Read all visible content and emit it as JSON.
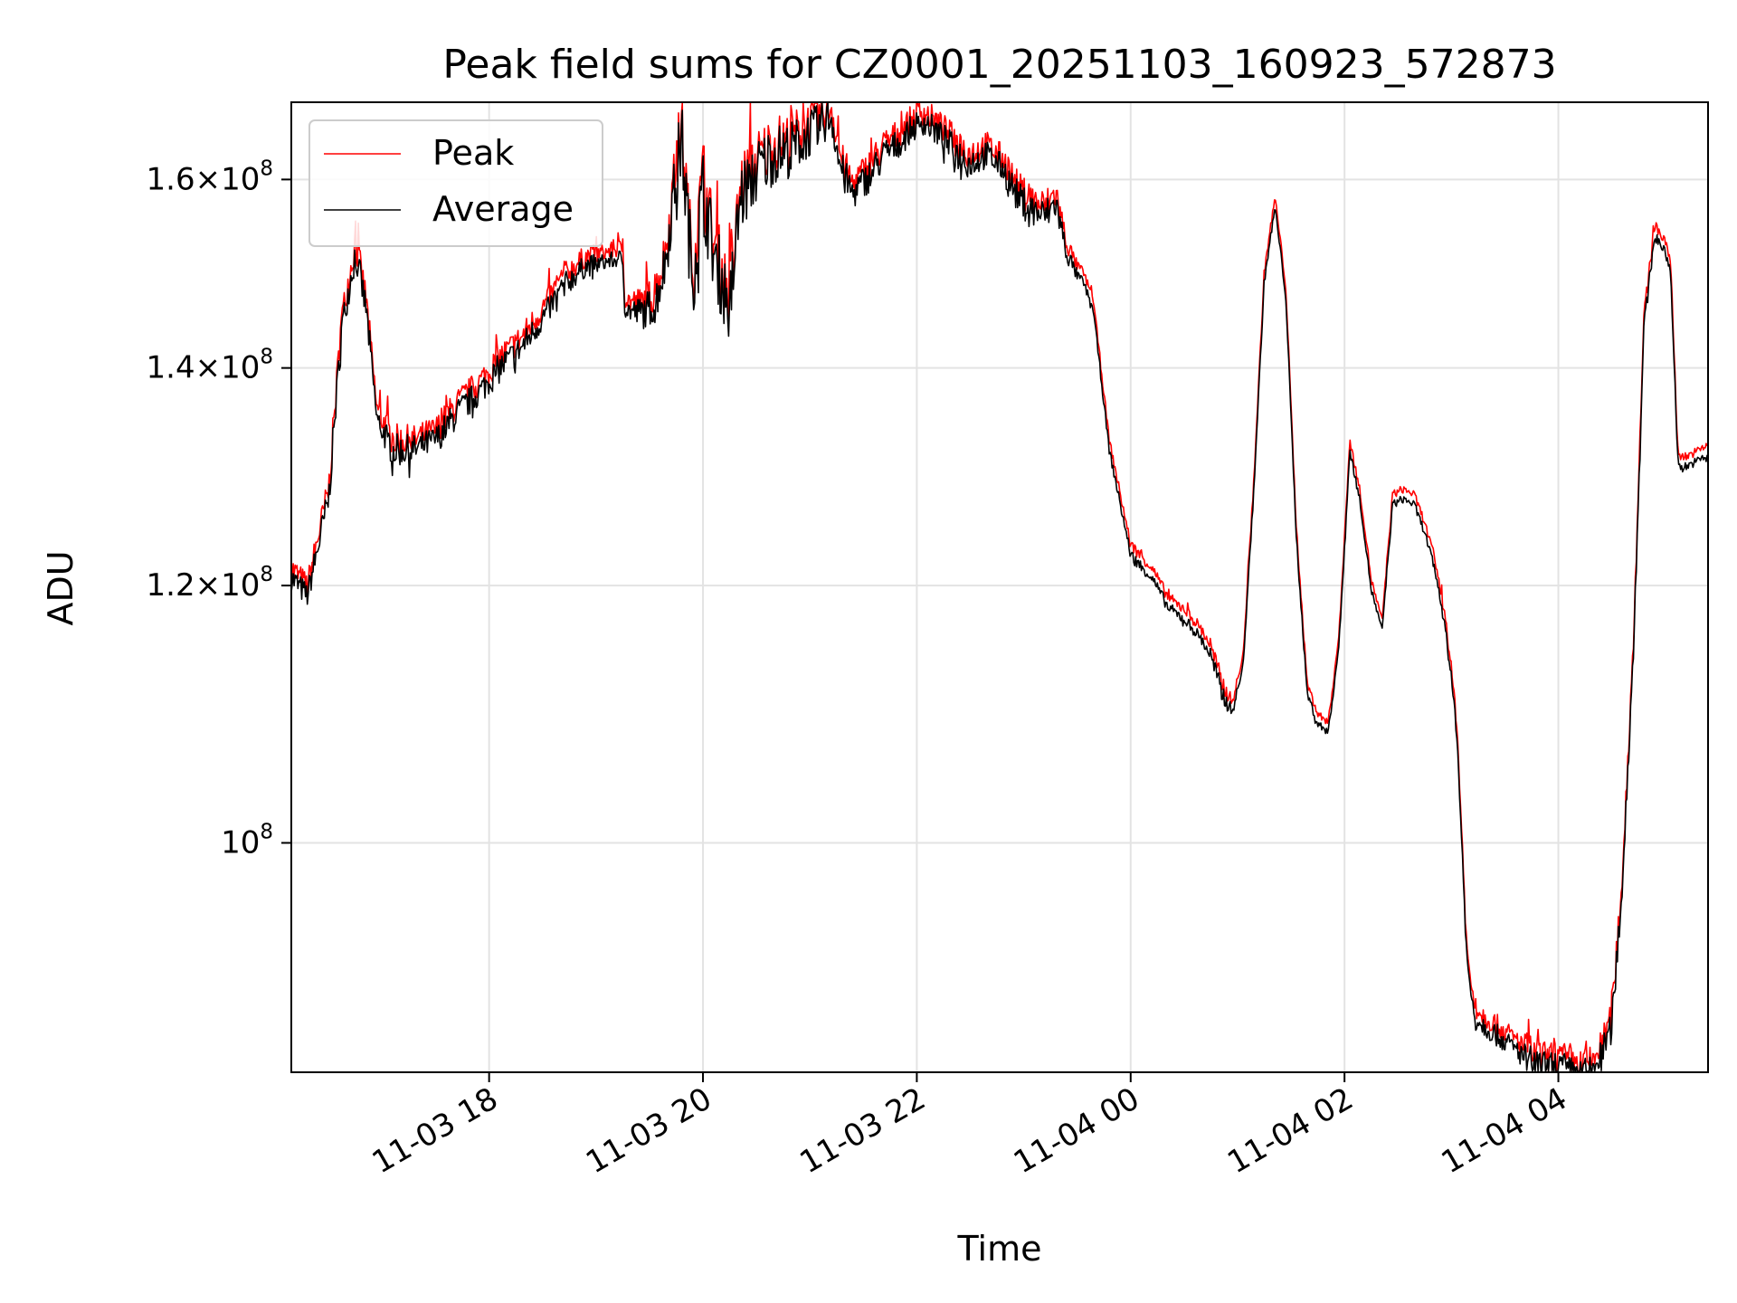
{
  "chart_data": {
    "type": "line",
    "title": "Peak field sums for CZ0001_20251103_160923_572873",
    "xlabel": "Time",
    "ylabel": "ADU",
    "yscale": "log",
    "xlim_hours": [
      16.15,
      29.4
    ],
    "ylim": [
      85000000,
      169000000
    ],
    "grid": true,
    "legend_position": "top-left",
    "x_ticks": [
      {
        "value": 18,
        "label": "11-03 18"
      },
      {
        "value": 20,
        "label": "11-03 20"
      },
      {
        "value": 22,
        "label": "11-03 22"
      },
      {
        "value": 24,
        "label": "11-04 00"
      },
      {
        "value": 26,
        "label": "11-04 02"
      },
      {
        "value": 28,
        "label": "11-04 04"
      }
    ],
    "y_ticks": [
      {
        "value": 100000000,
        "base": "10",
        "exp": "8",
        "mantissa": ""
      },
      {
        "value": 120000000,
        "base": "10",
        "exp": "8",
        "mantissa": "1.2×"
      },
      {
        "value": 140000000,
        "base": "10",
        "exp": "8",
        "mantissa": "1.4×"
      },
      {
        "value": 160000000,
        "base": "10",
        "exp": "8",
        "mantissa": "1.6×"
      }
    ],
    "series": [
      {
        "name": "Peak",
        "color": "#ff0000",
        "x_hours": [
          16.15,
          16.3,
          16.5,
          16.62,
          16.75,
          16.85,
          16.95,
          17.1,
          17.3,
          17.5,
          17.7,
          17.9,
          18.1,
          18.3,
          18.5,
          18.7,
          18.9,
          19.1,
          19.25,
          19.27,
          19.4,
          19.55,
          19.65,
          19.72,
          19.8,
          19.9,
          20.0,
          20.1,
          20.25,
          20.35,
          20.5,
          20.65,
          20.8,
          20.95,
          21.1,
          21.2,
          21.3,
          21.4,
          21.55,
          21.7,
          21.85,
          21.95,
          22.05,
          22.2,
          22.35,
          22.5,
          22.65,
          22.8,
          22.95,
          23.1,
          23.2,
          23.3,
          23.4,
          23.5,
          23.55,
          23.65,
          23.8,
          24.0,
          24.1,
          24.2,
          24.35,
          24.5,
          24.65,
          24.75,
          24.85,
          24.95,
          25.05,
          25.15,
          25.25,
          25.35,
          25.45,
          25.55,
          25.65,
          25.75,
          25.85,
          25.95,
          26.05,
          26.15,
          26.25,
          26.35,
          26.45,
          26.55,
          26.65,
          26.75,
          26.85,
          26.95,
          27.05,
          27.15,
          27.22,
          27.3,
          27.4,
          27.5,
          27.6,
          27.7,
          27.8,
          27.9,
          28.0,
          28.1,
          28.2,
          28.3,
          28.4,
          28.5,
          28.6,
          28.7,
          28.8,
          28.9,
          29.0,
          29.05,
          29.12,
          29.2,
          29.3,
          29.4
        ],
        "values": [
          121500000,
          120000000,
          128500000,
          145000000,
          153000000,
          147000000,
          136000000,
          133000000,
          133000000,
          134000000,
          136500000,
          138500000,
          141000000,
          143000000,
          146000000,
          149500000,
          151500000,
          152000000,
          152500000,
          147000000,
          146500000,
          147500000,
          152000000,
          159000000,
          166000000,
          150000000,
          160000000,
          153000000,
          147000000,
          159000000,
          162000000,
          164000000,
          164500000,
          166000000,
          167500000,
          168500000,
          162000000,
          159500000,
          161500000,
          164000000,
          165500000,
          167000000,
          168000000,
          166500000,
          164500000,
          163000000,
          164000000,
          162500000,
          159000000,
          157500000,
          157000000,
          158500000,
          153000000,
          150500000,
          150000000,
          147000000,
          133000000,
          123500000,
          122500000,
          121500000,
          119000000,
          118000000,
          116500000,
          115000000,
          112000000,
          110500000,
          114000000,
          129000000,
          150000000,
          158000000,
          148500000,
          125000000,
          112000000,
          109500000,
          109000000,
          116000000,
          133000000,
          128000000,
          120500000,
          117000000,
          128000000,
          128500000,
          128000000,
          125500000,
          122000000,
          117000000,
          109000000,
          92000000,
          89000000,
          88500000,
          88000000,
          87500000,
          87000000,
          86500000,
          86000000,
          85800000,
          86000000,
          85600000,
          85400000,
          85600000,
          86500000,
          88500000,
          98000000,
          115000000,
          145000000,
          155000000,
          153000000,
          151000000,
          131500000,
          131500000,
          132000000,
          132500000
        ],
        "noise_amp": [
          0.01,
          0.009,
          0.012,
          0.01,
          0.013,
          0.011,
          0.01,
          0.012,
          0.011,
          0.01,
          0.011,
          0.01,
          0.011,
          0.01,
          0.01,
          0.009,
          0.008,
          0.006,
          0.006,
          0.007,
          0.012,
          0.014,
          0.018,
          0.022,
          0.03,
          0.03,
          0.03,
          0.028,
          0.026,
          0.026,
          0.024,
          0.022,
          0.02,
          0.018,
          0.016,
          0.014,
          0.014,
          0.012,
          0.012,
          0.012,
          0.01,
          0.01,
          0.01,
          0.01,
          0.012,
          0.012,
          0.01,
          0.01,
          0.012,
          0.012,
          0.012,
          0.012,
          0.008,
          0.004,
          0.003,
          0.003,
          0.003,
          0.004,
          0.004,
          0.004,
          0.004,
          0.004,
          0.004,
          0.006,
          0.008,
          0.004,
          0.003,
          0.003,
          0.003,
          0.003,
          0.003,
          0.003,
          0.003,
          0.003,
          0.003,
          0.003,
          0.003,
          0.003,
          0.003,
          0.003,
          0.003,
          0.003,
          0.003,
          0.003,
          0.003,
          0.005,
          0.006,
          0.008,
          0.008,
          0.008,
          0.008,
          0.008,
          0.008,
          0.01,
          0.012,
          0.012,
          0.012,
          0.012,
          0.012,
          0.012,
          0.012,
          0.012,
          0.012,
          0.008,
          0.006,
          0.004,
          0.003,
          0.003,
          0.003,
          0.003,
          0.003,
          0.003
        ]
      },
      {
        "name": "Average",
        "color": "#000000",
        "ratio_to_peak": 0.993
      }
    ]
  }
}
